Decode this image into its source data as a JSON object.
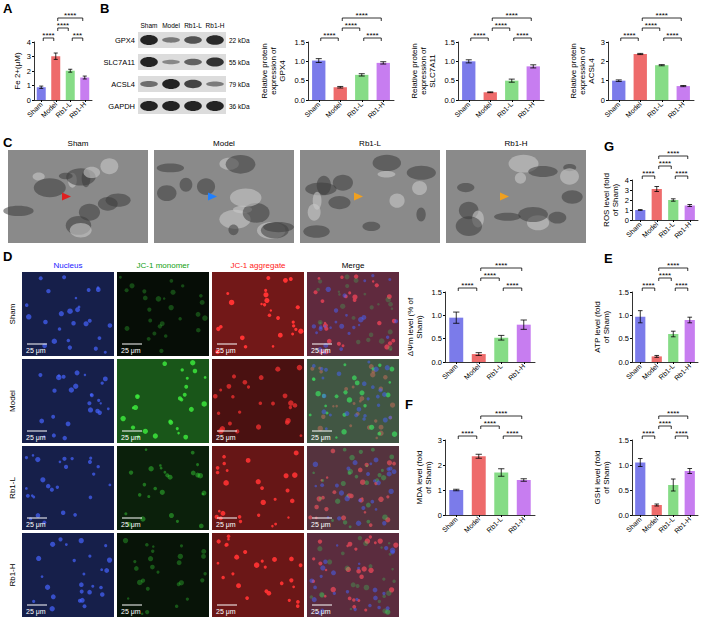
{
  "panel_letters": [
    "A",
    "B",
    "C",
    "D",
    "E",
    "F",
    "G"
  ],
  "chart_data": [
    {
      "type": "bar",
      "ylabel": "Fe 2+(μM)",
      "categories": [
        "Sham",
        "Model",
        "Rb1-L",
        "Rb1-H"
      ],
      "values": [
        0.88,
        3.02,
        2.02,
        1.55
      ],
      "errors": [
        0.08,
        0.22,
        0.1,
        0.1
      ],
      "colors": [
        "#7b7bea",
        "#ee6b6b",
        "#86dc86",
        "#c77df0"
      ],
      "ylim": [
        0,
        4
      ],
      "yticks": [
        0,
        1,
        2,
        3,
        4
      ],
      "grid": false,
      "comparisons": [
        {
          "groups": [
            "Sham",
            "Model"
          ],
          "label": "****"
        },
        {
          "groups": [
            "Rb1-L",
            "Rb1-H"
          ],
          "label": "***"
        },
        {
          "groups": [
            "Model",
            "Rb1-L"
          ],
          "label": "****"
        },
        {
          "groups": [
            "Model",
            "Rb1-H"
          ],
          "label": "****"
        }
      ]
    },
    {
      "type": "bar",
      "ylabel": "Relative protein expression of GPX4",
      "categories": [
        "Sham",
        "Model",
        "Rb1-L",
        "Rb1-H"
      ],
      "values": [
        1.02,
        0.33,
        0.65,
        0.96
      ],
      "errors": [
        0.05,
        0.02,
        0.03,
        0.03
      ],
      "colors": [
        "#7b7bea",
        "#ee6b6b",
        "#86dc86",
        "#c77df0"
      ],
      "ylim": [
        0,
        1.5
      ],
      "yticks": [
        {
          "value": 0,
          "label": "0.0"
        },
        {
          "value": 0.5,
          "label": "0.5"
        },
        {
          "value": 1,
          "label": "1.0"
        },
        {
          "value": 1.5,
          "label": "1.5"
        }
      ],
      "grid": false,
      "comparisons": [
        {
          "groups": [
            "Sham",
            "Model"
          ],
          "label": "****"
        },
        {
          "groups": [
            "Rb1-L",
            "Rb1-H"
          ],
          "label": "****"
        },
        {
          "groups": [
            "Model",
            "Rb1-L"
          ],
          "label": "****"
        },
        {
          "groups": [
            "Model",
            "Rb1-H"
          ],
          "label": "****"
        }
      ]
    },
    {
      "type": "bar",
      "ylabel": "Relative protein expression of SLC7A11",
      "categories": [
        "Sham",
        "Model",
        "Rb1-L",
        "Rb1-H"
      ],
      "values": [
        1.0,
        0.2,
        0.5,
        0.87
      ],
      "errors": [
        0.04,
        0.01,
        0.04,
        0.04
      ],
      "colors": [
        "#7b7bea",
        "#ee6b6b",
        "#86dc86",
        "#c77df0"
      ],
      "ylim": [
        0,
        1.5
      ],
      "yticks": [
        {
          "value": 0,
          "label": "0.0"
        },
        {
          "value": 0.5,
          "label": "0.5"
        },
        {
          "value": 1,
          "label": "1.0"
        },
        {
          "value": 1.5,
          "label": "1.5"
        }
      ],
      "grid": false,
      "comparisons": [
        {
          "groups": [
            "Sham",
            "Model"
          ],
          "label": "****"
        },
        {
          "groups": [
            "Rb1-L",
            "Rb1-H"
          ],
          "label": "****"
        },
        {
          "groups": [
            "Model",
            "Rb1-L"
          ],
          "label": "****"
        },
        {
          "groups": [
            "Model",
            "Rb1-H"
          ],
          "label": "****"
        }
      ]
    },
    {
      "type": "bar",
      "ylabel": "Relative protein expression of ACSL4",
      "categories": [
        "Sham",
        "Model",
        "Rb1-L",
        "Rb1-H"
      ],
      "values": [
        1.0,
        2.38,
        1.8,
        0.72
      ],
      "errors": [
        0.04,
        0.03,
        0.03,
        0.03
      ],
      "colors": [
        "#7b7bea",
        "#ee6b6b",
        "#86dc86",
        "#c77df0"
      ],
      "ylim": [
        0,
        3
      ],
      "yticks": [
        0,
        1,
        2,
        3
      ],
      "grid": false,
      "comparisons": [
        {
          "groups": [
            "Sham",
            "Model"
          ],
          "label": "****"
        },
        {
          "groups": [
            "Rb1-L",
            "Rb1-H"
          ],
          "label": "****"
        },
        {
          "groups": [
            "Model",
            "Rb1-L"
          ],
          "label": "****"
        },
        {
          "groups": [
            "Model",
            "Rb1-H"
          ],
          "label": "****"
        }
      ]
    },
    {
      "type": "bar",
      "ylabel": "ΔΨm level (% of Sham)",
      "categories": [
        "Sham",
        "Model",
        "Rb1-L",
        "Rb1-H"
      ],
      "values": [
        0.95,
        0.17,
        0.52,
        0.8
      ],
      "errors": [
        0.12,
        0.03,
        0.05,
        0.1
      ],
      "colors": [
        "#7b7bea",
        "#ee6b6b",
        "#86dc86",
        "#c77df0"
      ],
      "ylim": [
        0,
        1.5
      ],
      "yticks": [
        {
          "value": 0,
          "label": "0.0"
        },
        {
          "value": 0.5,
          "label": "0.5"
        },
        {
          "value": 1,
          "label": "1.0"
        },
        {
          "value": 1.5,
          "label": "1.5"
        }
      ],
      "grid": false,
      "comparisons": [
        {
          "groups": [
            "Sham",
            "Model"
          ],
          "label": "****"
        },
        {
          "groups": [
            "Rb1-L",
            "Rb1-H"
          ],
          "label": "****"
        },
        {
          "groups": [
            "Model",
            "Rb1-L"
          ],
          "label": "****"
        },
        {
          "groups": [
            "Model",
            "Rb1-H"
          ],
          "label": "****"
        }
      ]
    },
    {
      "type": "bar",
      "ylabel": "ATP level (fold of Sham)",
      "categories": [
        "Sham",
        "Model",
        "Rb1-L",
        "Rb1-H"
      ],
      "values": [
        0.97,
        0.12,
        0.6,
        0.9
      ],
      "errors": [
        0.13,
        0.02,
        0.06,
        0.06
      ],
      "colors": [
        "#7b7bea",
        "#ee6b6b",
        "#86dc86",
        "#c77df0"
      ],
      "ylim": [
        0,
        1.5
      ],
      "yticks": [
        {
          "value": 0,
          "label": "0.0"
        },
        {
          "value": 0.5,
          "label": "0.5"
        },
        {
          "value": 1,
          "label": "1.0"
        },
        {
          "value": 1.5,
          "label": "1.5"
        }
      ],
      "grid": false,
      "comparisons": [
        {
          "groups": [
            "Sham",
            "Model"
          ],
          "label": "****"
        },
        {
          "groups": [
            "Rb1-L",
            "Rb1-H"
          ],
          "label": "****"
        },
        {
          "groups": [
            "Model",
            "Rb1-L"
          ],
          "label": "****"
        },
        {
          "groups": [
            "Model",
            "Rb1-H"
          ],
          "label": "****"
        }
      ]
    },
    {
      "type": "bar",
      "ylabel": "MDA level (fold of Sham)",
      "categories": [
        "Sham",
        "Model",
        "Rb1-L",
        "Rb1-H"
      ],
      "values": [
        1.0,
        2.35,
        1.7,
        1.4
      ],
      "errors": [
        0.03,
        0.08,
        0.15,
        0.05
      ],
      "colors": [
        "#7b7bea",
        "#ee6b6b",
        "#86dc86",
        "#c77df0"
      ],
      "ylim": [
        0,
        3
      ],
      "yticks": [
        0,
        1,
        2,
        3
      ],
      "grid": false,
      "comparisons": [
        {
          "groups": [
            "Sham",
            "Model"
          ],
          "label": "****"
        },
        {
          "groups": [
            "Rb1-L",
            "Rb1-H"
          ],
          "label": "****"
        },
        {
          "groups": [
            "Model",
            "Rb1-L"
          ],
          "label": "****"
        },
        {
          "groups": [
            "Model",
            "Rb1-H"
          ],
          "label": "****"
        }
      ]
    },
    {
      "type": "bar",
      "ylabel": "GSH level (fold of Sham)",
      "categories": [
        "Sham",
        "Model",
        "Rb1-L",
        "Rb1-H"
      ],
      "values": [
        1.05,
        0.2,
        0.6,
        0.88
      ],
      "errors": [
        0.08,
        0.02,
        0.12,
        0.05
      ],
      "colors": [
        "#7b7bea",
        "#ee6b6b",
        "#86dc86",
        "#c77df0"
      ],
      "ylim": [
        0,
        1.5
      ],
      "yticks": [
        {
          "value": 0,
          "label": "0.0"
        },
        {
          "value": 0.5,
          "label": "0.5"
        },
        {
          "value": 1,
          "label": "1.0"
        },
        {
          "value": 1.5,
          "label": "1.5"
        }
      ],
      "grid": false,
      "comparisons": [
        {
          "groups": [
            "Sham",
            "Model"
          ],
          "label": "****"
        },
        {
          "groups": [
            "Rb1-L",
            "Rb1-H"
          ],
          "label": "****"
        },
        {
          "groups": [
            "Model",
            "Rb1-L"
          ],
          "label": "****"
        },
        {
          "groups": [
            "Model",
            "Rb1-H"
          ],
          "label": "****"
        }
      ]
    },
    {
      "type": "bar",
      "ylabel": "ROS level (fold of Sham)",
      "categories": [
        "Sham",
        "Model",
        "Rb1-L",
        "Rb1-H"
      ],
      "values": [
        1.0,
        3.1,
        2.0,
        1.45
      ],
      "errors": [
        0.04,
        0.25,
        0.12,
        0.1
      ],
      "colors": [
        "#7b7bea",
        "#ee6b6b",
        "#86dc86",
        "#c77df0"
      ],
      "ylim": [
        0,
        4
      ],
      "yticks": [
        0,
        1,
        2,
        3,
        4
      ],
      "grid": false,
      "comparisons": [
        {
          "groups": [
            "Sham",
            "Model"
          ],
          "label": "****"
        },
        {
          "groups": [
            "Rb1-L",
            "Rb1-H"
          ],
          "label": "****"
        },
        {
          "groups": [
            "Model",
            "Rb1-L"
          ],
          "label": "****"
        },
        {
          "groups": [
            "Model",
            "Rb1-H"
          ],
          "label": "****"
        }
      ]
    }
  ],
  "western_blot": {
    "lanes": [
      "Sham",
      "Model",
      "Rb1-L",
      "Rb1-H"
    ],
    "proteins": [
      {
        "name": "GPX4",
        "size": "22 kDa"
      },
      {
        "name": "SLC7A11",
        "size": "55 kDa"
      },
      {
        "name": "ACSL4",
        "size": "79 kDa"
      },
      {
        "name": "GAPDH",
        "size": "36 kDa"
      }
    ]
  },
  "tem": {
    "titles": [
      "Sham",
      "Model",
      "Rb1-L",
      "Rb1-H"
    ]
  },
  "fluorescence": {
    "channels": [
      "Nucleus",
      "JC-1 monomer",
      "JC-1 aggregate",
      "Merge"
    ],
    "rows": [
      "Sham",
      "Model",
      "Rb1-L",
      "Rb1-H"
    ],
    "scale_bar": "25 μm"
  }
}
